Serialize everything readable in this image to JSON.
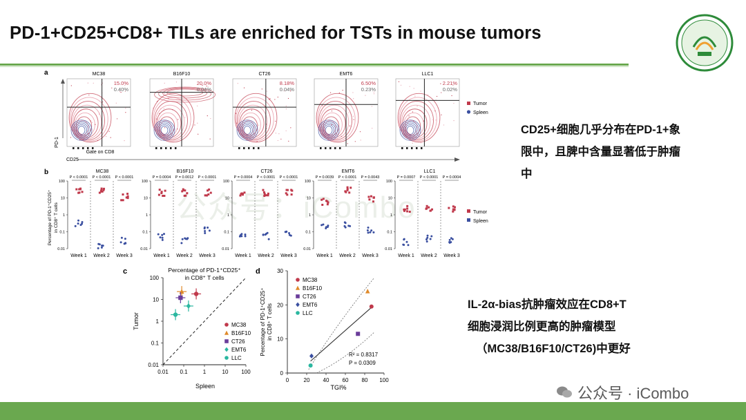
{
  "slide": {
    "title": "PD-1+CD25+CD8+ TILs are enriched for TSTs in mouse tumors",
    "note1": [
      "CD25+细胞几乎分布在PD-1+象",
      "限中，且脾中含量显著低于肿瘤",
      "中"
    ],
    "note2": [
      "IL-2α-bias抗肿瘤效应在CD8+T",
      "细胞浸润比例更高的肿瘤模型",
      "（MC38/B16F10/CT26)中更好"
    ],
    "watermark": "公众号 · iCombo",
    "bg_watermark": "公众号：iCombo",
    "colors": {
      "accent_green": "#6aa84f",
      "tumor": "#c0394b",
      "spleen": "#3a4fa0"
    }
  },
  "panel_a": {
    "label": "a",
    "tumors": [
      "MC38",
      "B16F10",
      "CT26",
      "EMT6",
      "LLC1"
    ],
    "tumor_pct": [
      "15.0%",
      "20.0%",
      "8.18%",
      "6.50%",
      "2.21%"
    ],
    "spleen_pct": [
      "0.40%",
      "0.04%",
      "0.04%",
      "0.23%",
      "0.02%"
    ],
    "ylabel": "PD-1",
    "xlabel": "Gate on CD8",
    "axis2": "CD25",
    "legend": [
      "Tumor",
      "Spleen"
    ]
  },
  "panel_b": {
    "label": "b",
    "tumors": [
      "MC38",
      "B16F10",
      "CT26",
      "EMT6",
      "LLC1"
    ],
    "pvals": [
      [
        "P < 0.0001",
        "P < 0.0001",
        "P < 0.0001"
      ],
      [
        "P = 0.0004",
        "P = 0.0012",
        "P < 0.0001"
      ],
      [
        "P = 0.0004",
        "P < 0.0001",
        "P < 0.0001"
      ],
      [
        "P = 0.0039",
        "P < 0.0001",
        "P = 0.0043"
      ],
      [
        "P = 0.0007",
        "P < 0.0001",
        "P = 0.0004"
      ]
    ],
    "ylabel1": "Percentage of PD-1⁺CD25⁺",
    "ylabel2": "in CD8⁺ T cells",
    "yticks": [
      "100",
      "10",
      "1",
      "0.1",
      "0.01"
    ],
    "weeks": [
      "Week 1",
      "Week 2",
      "Week 3"
    ],
    "legend": [
      "Tumor",
      "Spleen"
    ]
  },
  "chart_data": [
    {
      "type": "scatter",
      "title": "Percentage of PD-1⁺CD25⁺ in CD8⁺ T cells",
      "xlabel": "Spleen",
      "ylabel": "Tumor",
      "xscale": "log",
      "yscale": "log",
      "xlim": [
        0.01,
        100
      ],
      "ylim": [
        0.01,
        100
      ],
      "xticks": [
        "0.01",
        "0.1",
        "1",
        "10",
        "100"
      ],
      "yticks": [
        "100",
        "10",
        "1",
        "0.1",
        "0.01"
      ],
      "series": [
        {
          "name": "MC38",
          "x": [
            0.4
          ],
          "y": [
            18
          ],
          "marker": "circle",
          "color": "#c0394b"
        },
        {
          "name": "B16F10",
          "x": [
            0.08
          ],
          "y": [
            23
          ],
          "marker": "triangle",
          "color": "#e08a2a"
        },
        {
          "name": "CT26",
          "x": [
            0.07
          ],
          "y": [
            12
          ],
          "marker": "square",
          "color": "#6a3d9a"
        },
        {
          "name": "EMT6",
          "x": [
            0.17
          ],
          "y": [
            5
          ],
          "marker": "diamond",
          "color": "#2ab7a0"
        },
        {
          "name": "LLC",
          "x": [
            0.04
          ],
          "y": [
            2
          ],
          "marker": "circle",
          "color": "#2ab7a0"
        }
      ],
      "legend": "right"
    },
    {
      "type": "scatter",
      "xlabel": "TGI%",
      "ylabel": "Percentage of PD-1⁺CD25⁺ in CD8⁺ T cells",
      "xlim": [
        0,
        100
      ],
      "ylim": [
        0,
        30
      ],
      "xticks": [
        "0",
        "20",
        "40",
        "60",
        "80",
        "100"
      ],
      "yticks": [
        "0",
        "10",
        "20",
        "30"
      ],
      "series": [
        {
          "name": "MC38",
          "x": [
            87
          ],
          "y": [
            19.5
          ],
          "marker": "circle",
          "color": "#c0394b"
        },
        {
          "name": "B16F10",
          "x": [
            83
          ],
          "y": [
            24
          ],
          "marker": "triangle",
          "color": "#e08a2a"
        },
        {
          "name": "CT26",
          "x": [
            73
          ],
          "y": [
            11.5
          ],
          "marker": "square",
          "color": "#6a3d9a"
        },
        {
          "name": "EMT6",
          "x": [
            25
          ],
          "y": [
            5
          ],
          "marker": "diamond",
          "color": "#3a4fa0"
        },
        {
          "name": "LLC",
          "x": [
            24
          ],
          "y": [
            2.2
          ],
          "marker": "circle",
          "color": "#2ab7a0"
        }
      ],
      "annotation": [
        "R² = 0.8317",
        "P = 0.0309"
      ],
      "legend": "top-left"
    }
  ]
}
